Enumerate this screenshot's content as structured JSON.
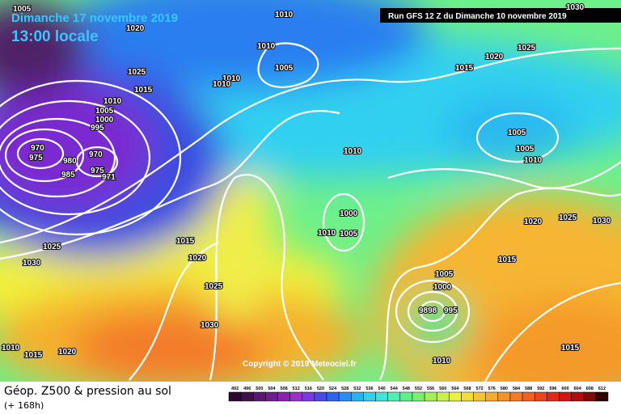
{
  "header": {
    "date": "Dimanche 17 novembre 2019",
    "time": "13:00 locale",
    "run": "Run GFS 12 Z du Dimanche 10 novembre 2019"
  },
  "copyright": "Copyright © 2019 Meteociel.fr",
  "legend": {
    "title": "Géop. Z500 & pression au sol",
    "subtitle": "(+ 168h)",
    "scale": [
      492,
      496,
      500,
      504,
      508,
      512,
      516,
      520,
      524,
      528,
      532,
      536,
      540,
      544,
      548,
      552,
      556,
      560,
      564,
      568,
      572,
      576,
      580,
      584,
      588,
      592,
      596,
      600,
      604,
      608,
      612
    ]
  },
  "isobars": [
    "1005",
    "1020",
    "1010",
    "1030",
    "1025",
    "1020",
    "1015",
    "1010",
    "1005",
    "1010",
    "1010",
    "1025",
    "1015",
    "1010",
    "1005",
    "1000",
    "995",
    "970",
    "975",
    "980",
    "985",
    "970",
    "975",
    "971",
    "1010",
    "1005",
    "1005",
    "1010",
    "1000",
    "1010",
    "1005",
    "1020",
    "1025",
    "1030",
    "1015",
    "1025",
    "1030",
    "1015",
    "1020",
    "1025",
    "1030",
    "1005",
    "1000",
    "9898",
    "995",
    "1010",
    "1010",
    "1015",
    "1020",
    "1015"
  ]
}
